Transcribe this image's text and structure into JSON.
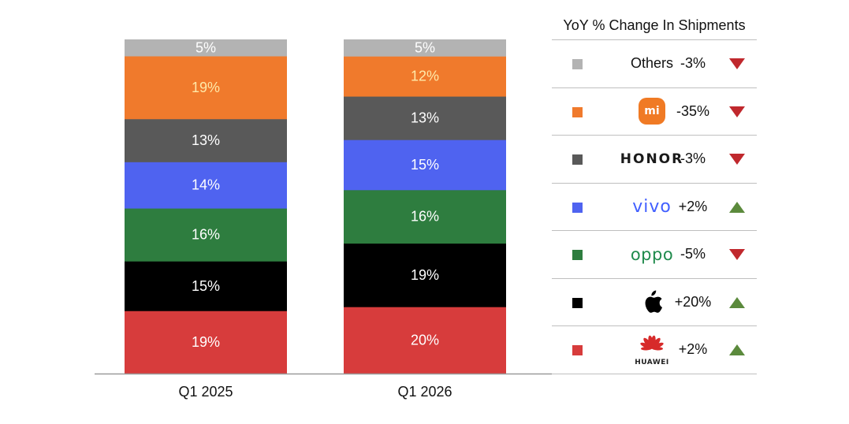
{
  "chart_data": {
    "type": "bar",
    "stacked": true,
    "unit": "%",
    "categories": [
      "Q1 2025",
      "Q1 2026"
    ],
    "series": [
      {
        "name": "HUAWEI",
        "color": "#d73c3c",
        "label_color": "#ffffff",
        "values": [
          19,
          20
        ]
      },
      {
        "name": "Apple",
        "color": "#000000",
        "label_color": "#ffffff",
        "values": [
          15,
          19
        ]
      },
      {
        "name": "OPPO",
        "color": "#2e7d3f",
        "label_color": "#ffffff",
        "values": [
          16,
          16
        ]
      },
      {
        "name": "vivo",
        "color": "#4f63f0",
        "label_color": "#ffffff",
        "values": [
          14,
          15
        ]
      },
      {
        "name": "HONOR",
        "color": "#595959",
        "label_color": "#ffffff",
        "values": [
          13,
          13
        ]
      },
      {
        "name": "Xiaomi",
        "color": "#f07a2c",
        "label_color": "#ffe9a8",
        "values": [
          19,
          12
        ]
      },
      {
        "name": "Others",
        "color": "#b3b3b3",
        "label_color": "#ffffff",
        "values": [
          5,
          5
        ]
      }
    ],
    "legend_placement": "right",
    "grid": false
  },
  "legend": {
    "title": "YoY % Change In Shipments",
    "rows": [
      {
        "key": "others",
        "label": "Others",
        "change": "-3%",
        "direction": "down",
        "color": "#b3b3b3"
      },
      {
        "key": "xiaomi",
        "label": "mi",
        "change": "-35%",
        "direction": "down",
        "color": "#f07a2c"
      },
      {
        "key": "honor",
        "label": "HONOR",
        "change": "-3%",
        "direction": "down",
        "color": "#595959"
      },
      {
        "key": "vivo",
        "label": "vivo",
        "change": "+2%",
        "direction": "up",
        "color": "#4f63f0"
      },
      {
        "key": "oppo",
        "label": "oppo",
        "change": "-5%",
        "direction": "down",
        "color": "#2e7d3f"
      },
      {
        "key": "apple",
        "label": "",
        "change": "+20%",
        "direction": "up",
        "color": "#000000"
      },
      {
        "key": "huawei",
        "label": "HUAWEI",
        "change": "+2%",
        "direction": "up",
        "color": "#d73c3c"
      }
    ],
    "arrow_colors": {
      "down": "#c0282d",
      "up": "#5b8a3c"
    }
  },
  "icons": {
    "xiaomi": "xiaomi-logo-icon",
    "apple": "apple-logo-icon",
    "huawei": "huawei-logo-icon",
    "down": "triangle-down-icon",
    "up": "triangle-up-icon"
  }
}
